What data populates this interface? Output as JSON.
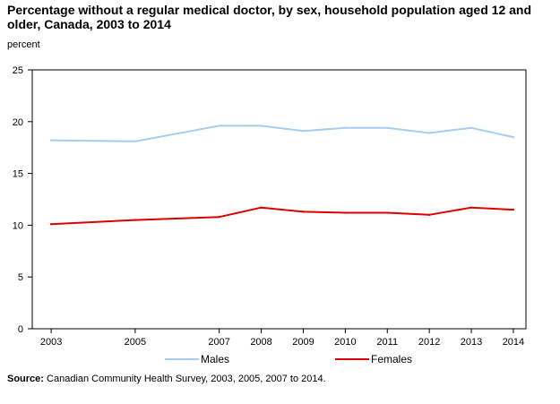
{
  "title": "Percentage without a regular medical doctor, by sex, household population aged 12 and older, Canada, 2003 to 2014",
  "chart_data": {
    "type": "line",
    "title": "Percentage without a regular medical doctor, by sex, household population aged 12 and older, Canada, 2003 to 2014",
    "ylabel": "percent",
    "xlabel": "",
    "x": [
      2003,
      2005,
      2007,
      2008,
      2009,
      2010,
      2011,
      2012,
      2013,
      2014
    ],
    "x_tick_labels": [
      "2003",
      "2005",
      "2007",
      "2008",
      "2009",
      "2010",
      "2011",
      "2012",
      "2013",
      "2014"
    ],
    "ylim": [
      0,
      25
    ],
    "y_ticks": [
      0,
      5,
      10,
      15,
      20,
      25
    ],
    "grid": false,
    "legend_position": "bottom",
    "series": [
      {
        "name": "Males",
        "color": "#a6cdf1",
        "values": [
          18.2,
          18.1,
          19.6,
          19.6,
          19.1,
          19.4,
          19.4,
          18.9,
          19.4,
          18.5
        ]
      },
      {
        "name": "Females",
        "color": "#dd0000",
        "values": [
          10.1,
          10.5,
          10.8,
          11.7,
          11.3,
          11.2,
          11.2,
          11.0,
          11.7,
          11.5
        ]
      }
    ]
  },
  "source": {
    "label": "Source:",
    "text": " Canadian Community Health Survey, 2003, 2005, 2007 to 2014."
  }
}
